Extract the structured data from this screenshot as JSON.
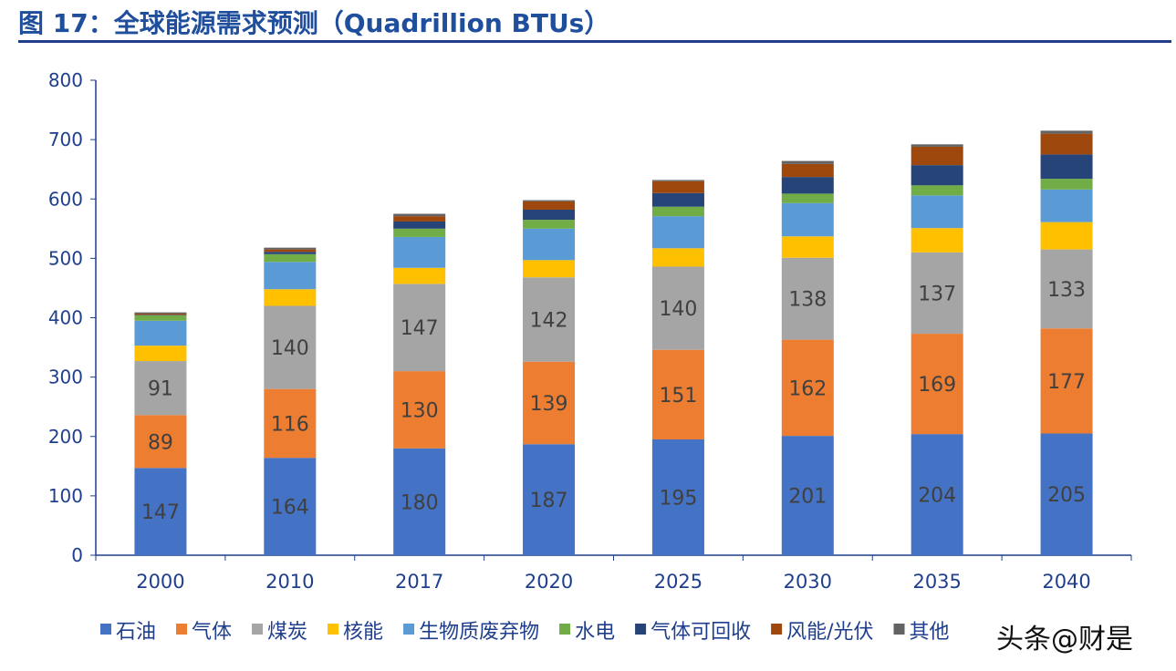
{
  "title": "图 17：全球能源需求预测（Quadrillion BTUs）",
  "watermark": "头条@财是",
  "chart_data": {
    "type": "bar",
    "stacked": true,
    "title": "图 17：全球能源需求预测（Quadrillion BTUs）",
    "xlabel": "",
    "ylabel": "",
    "ylim": [
      0,
      800
    ],
    "yticks": [
      0,
      100,
      200,
      300,
      400,
      500,
      600,
      700,
      800
    ],
    "grid": false,
    "legend_position": "bottom",
    "categories": [
      "2000",
      "2010",
      "2017",
      "2020",
      "2025",
      "2030",
      "2035",
      "2040"
    ],
    "series": [
      {
        "name": "石油",
        "color": "#4472c4",
        "labeled": true,
        "values": [
          147,
          164,
          180,
          187,
          195,
          201,
          204,
          205
        ]
      },
      {
        "name": "气体",
        "color": "#ed7d31",
        "labeled": true,
        "values": [
          89,
          116,
          130,
          139,
          151,
          162,
          169,
          177
        ]
      },
      {
        "name": "煤炭",
        "color": "#a5a5a5",
        "labeled": true,
        "values": [
          91,
          140,
          147,
          142,
          140,
          138,
          137,
          133
        ]
      },
      {
        "name": "核能",
        "color": "#ffc000",
        "values": [
          26,
          28,
          27,
          29,
          31,
          36,
          41,
          46
        ]
      },
      {
        "name": "生物质废弃物",
        "color": "#5b9bd5",
        "values": [
          42,
          46,
          52,
          53,
          54,
          56,
          55,
          55
        ]
      },
      {
        "name": "水电",
        "color": "#70ad47",
        "values": [
          9,
          13,
          14,
          15,
          16,
          16,
          17,
          18
        ]
      },
      {
        "name": "气体可回收",
        "color": "#264478",
        "values": [
          1,
          4,
          12,
          17,
          23,
          28,
          34,
          41
        ]
      },
      {
        "name": "风能/光伏",
        "color": "#9e480e",
        "values": [
          2,
          4,
          9,
          14,
          20,
          22,
          31,
          35
        ]
      },
      {
        "name": "其他",
        "color": "#636363",
        "values": [
          2,
          3,
          4,
          2,
          2,
          5,
          4,
          5
        ]
      }
    ]
  }
}
